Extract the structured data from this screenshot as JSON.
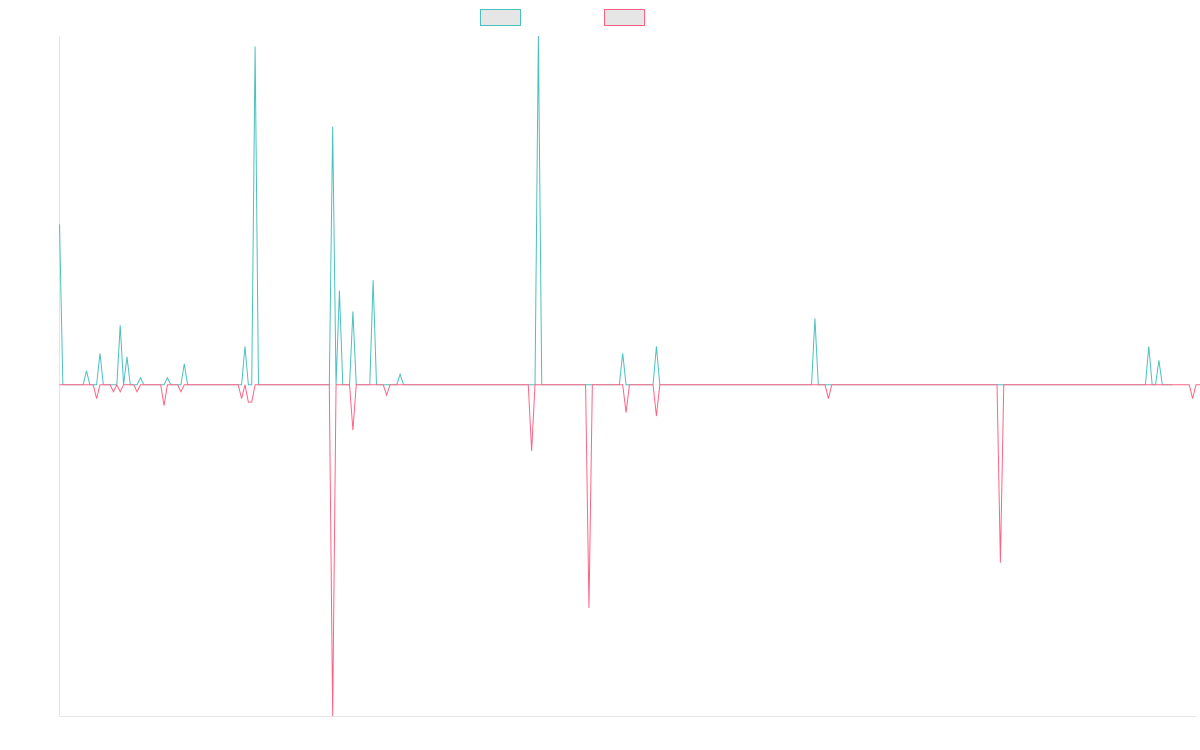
{
  "chart_data": {
    "type": "line",
    "title": "",
    "xlabel": "",
    "ylabel": "",
    "x_range": [
      0,
      337
    ],
    "ylim": [
      -0.95,
      1.0
    ],
    "grid": false,
    "legend_position": "top-center",
    "series": [
      {
        "name": "",
        "color": "#4bc0c0",
        "fill": "#e6e6e6",
        "values": [
          0.46,
          0,
          0,
          0,
          0,
          0,
          0,
          0,
          0.04,
          0,
          0,
          0,
          0.09,
          0,
          0,
          0,
          0,
          0,
          0.17,
          0,
          0.08,
          0,
          0,
          0,
          0.02,
          0,
          0,
          0,
          0,
          0,
          0,
          0,
          0.02,
          0,
          0,
          0,
          0,
          0.06,
          0,
          0,
          0,
          0,
          0,
          0,
          0,
          0,
          0,
          0,
          0,
          0,
          0,
          0,
          0,
          0,
          0,
          0.11,
          0,
          0,
          0.97,
          0,
          0,
          0,
          0,
          0,
          0,
          0,
          0,
          0,
          0,
          0,
          0,
          0,
          0,
          0,
          0,
          0,
          0,
          0,
          0,
          0,
          0,
          0.74,
          0,
          0.27,
          0,
          0,
          0,
          0.21,
          0,
          0,
          0,
          0,
          0,
          0.3,
          0,
          0,
          0,
          0,
          0,
          0,
          0,
          0.03,
          0,
          0,
          0,
          0,
          0,
          0,
          0,
          0,
          0,
          0,
          0,
          0,
          0,
          0,
          0,
          0,
          0,
          0,
          0,
          0,
          0,
          0,
          0,
          0,
          0,
          0,
          0,
          0,
          0,
          0,
          0,
          0,
          0,
          0,
          0,
          0,
          0,
          0,
          0,
          0,
          1.0,
          0,
          0,
          0,
          0,
          0,
          0,
          0,
          0,
          0,
          0,
          0,
          0,
          0,
          0,
          0,
          0,
          0,
          0,
          0,
          0,
          0,
          0,
          0,
          0,
          0.09,
          0,
          0,
          0,
          0,
          0,
          0,
          0,
          0,
          0,
          0.11,
          0,
          0,
          0,
          0,
          0,
          0,
          0,
          0,
          0,
          0,
          0,
          0,
          0,
          0,
          0,
          0,
          0,
          0,
          0,
          0,
          0,
          0,
          0,
          0,
          0,
          0,
          0,
          0,
          0,
          0,
          0,
          0,
          0,
          0,
          0,
          0,
          0,
          0,
          0,
          0,
          0,
          0,
          0,
          0,
          0,
          0,
          0.19,
          0,
          0,
          0,
          0,
          0,
          0,
          0,
          0,
          0,
          0,
          0,
          0,
          0,
          0,
          0,
          0,
          0,
          0,
          0,
          0,
          0,
          0,
          0,
          0,
          0,
          0,
          0,
          0,
          0,
          0,
          0,
          0,
          0,
          0,
          0,
          0,
          0,
          0,
          0,
          0,
          0,
          0,
          0,
          0,
          0,
          0,
          0,
          0,
          0,
          0,
          0,
          0,
          0,
          0,
          0,
          0,
          0,
          0,
          0,
          0,
          0,
          0,
          0,
          0,
          0,
          0,
          0,
          0,
          0,
          0,
          0,
          0,
          0,
          0,
          0,
          0,
          0,
          0,
          0,
          0,
          0,
          0,
          0,
          0,
          0,
          0,
          0,
          0,
          0,
          0,
          0,
          0,
          0,
          0,
          0,
          0,
          0,
          0,
          0.11,
          0,
          0,
          0.07,
          0,
          0,
          0,
          0
        ]
      },
      {
        "name": "",
        "color": "#ff6384",
        "fill": "#e6e6e6",
        "values": [
          0,
          0,
          0,
          0,
          0,
          0,
          0,
          0,
          0,
          0,
          0,
          -0.04,
          0,
          0,
          0,
          0,
          -0.02,
          0,
          -0.02,
          0,
          0,
          0,
          0,
          -0.02,
          0,
          0,
          0,
          0,
          0,
          0,
          0,
          -0.06,
          0,
          0,
          0,
          0,
          -0.02,
          0,
          0,
          0,
          0,
          0,
          0,
          0,
          0,
          0,
          0,
          0,
          0,
          0,
          0,
          0,
          0,
          0,
          -0.04,
          0,
          -0.05,
          -0.05,
          0,
          0,
          0,
          0,
          0,
          0,
          0,
          0,
          0,
          0,
          0,
          0,
          0,
          0,
          0,
          0,
          0,
          0,
          0,
          0,
          0,
          0,
          0,
          -0.95,
          0,
          0,
          0,
          0,
          0,
          -0.13,
          0,
          0,
          0,
          0,
          0,
          0,
          0,
          0,
          0,
          -0.03,
          0,
          0,
          0,
          0,
          0,
          0,
          0,
          0,
          0,
          0,
          0,
          0,
          0,
          0,
          0,
          0,
          0,
          0,
          0,
          0,
          0,
          0,
          0,
          0,
          0,
          0,
          0,
          0,
          0,
          0,
          0,
          0,
          0,
          0,
          0,
          0,
          0,
          0,
          0,
          0,
          0,
          0,
          -0.19,
          0,
          0,
          0,
          0,
          0,
          0,
          0,
          0,
          0,
          0,
          0,
          0,
          0,
          0,
          0,
          0,
          -0.64,
          0,
          0,
          0,
          0,
          0,
          0,
          0,
          0,
          0,
          0,
          -0.08,
          0,
          0,
          0,
          0,
          0,
          0,
          0,
          0,
          -0.09,
          0,
          0,
          0,
          0,
          0,
          0,
          0,
          0,
          0,
          0,
          0,
          0,
          0,
          0,
          0,
          0,
          0,
          0,
          0,
          0,
          0,
          0,
          0,
          0,
          0,
          0,
          0,
          0,
          0,
          0,
          0,
          0,
          0,
          0,
          0,
          0,
          0,
          0,
          0,
          0,
          0,
          0,
          0,
          0,
          0,
          0,
          0,
          0,
          0,
          0,
          -0.04,
          0,
          0,
          0,
          0,
          0,
          0,
          0,
          0,
          0,
          0,
          0,
          0,
          0,
          0,
          0,
          0,
          0,
          0,
          0,
          0,
          0,
          0,
          0,
          0,
          0,
          0,
          0,
          0,
          0,
          0,
          0,
          0,
          0,
          0,
          0,
          0,
          0,
          0,
          0,
          0,
          0,
          0,
          0,
          0,
          0,
          0,
          0,
          0,
          0,
          0,
          -0.51,
          0,
          0,
          0,
          0,
          0,
          0,
          0,
          0,
          0,
          0,
          0,
          0,
          0,
          0,
          0,
          0,
          0,
          0,
          0,
          0,
          0,
          0,
          0,
          0,
          0,
          0,
          0,
          0,
          0,
          0,
          0,
          0,
          0,
          0,
          0,
          0,
          0,
          0,
          0,
          0,
          0,
          0,
          0,
          0,
          0,
          0,
          0,
          0,
          0,
          0,
          0,
          0,
          0,
          0,
          0,
          0,
          -0.04,
          0,
          0,
          0,
          0,
          0,
          0
        ]
      }
    ]
  }
}
